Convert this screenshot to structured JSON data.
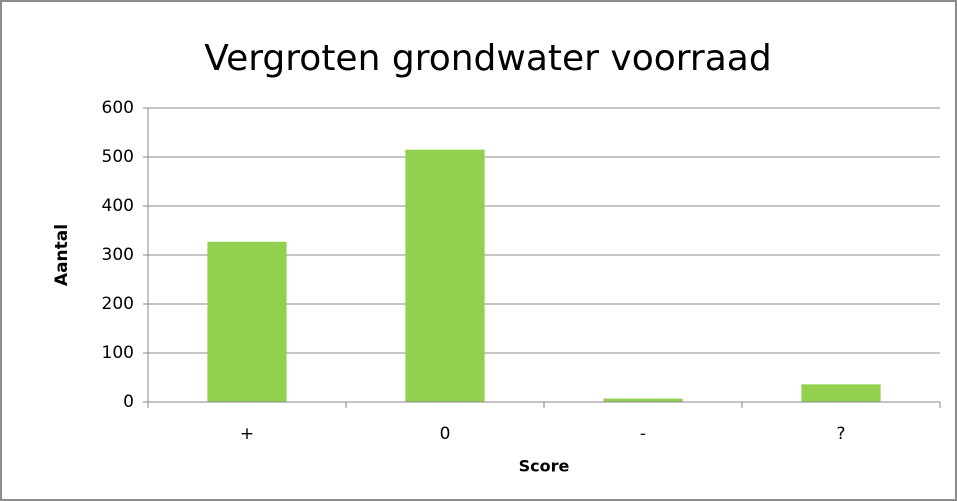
{
  "chart_data": {
    "type": "bar",
    "title": "Vergroten grondwater voorraad",
    "categories": [
      "+",
      "0",
      "-",
      "?"
    ],
    "values": [
      327,
      515,
      7,
      36
    ],
    "color": "#92d050",
    "ylim": [
      0,
      600
    ],
    "yticks": [
      0,
      100,
      200,
      300,
      400,
      500,
      600
    ],
    "grid": true,
    "y_label": "Aantal",
    "x_label": "Score"
  }
}
